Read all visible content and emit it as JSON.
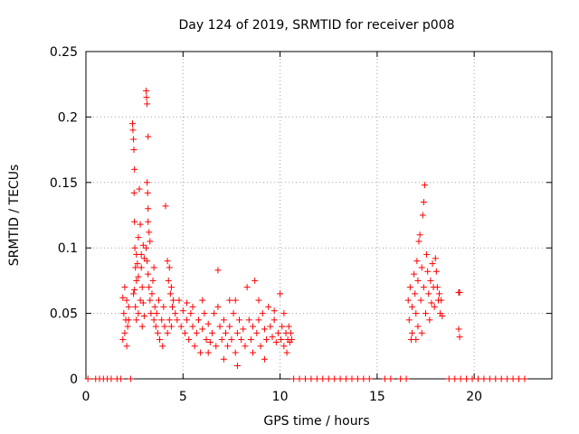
{
  "chart_data": {
    "type": "scatter",
    "title": "Day 124 of 2019, SRMTID for receiver p008",
    "xlabel": "GPS time / hours",
    "ylabel": "SRMTID / TECUs",
    "xlim": [
      0,
      24
    ],
    "ylim": [
      0,
      0.25
    ],
    "xticks": [
      0,
      5,
      10,
      15,
      20
    ],
    "xtick_labels": [
      "0",
      "5",
      "10",
      "15",
      "20"
    ],
    "yticks": [
      0,
      0.05,
      0.1,
      0.15,
      0.2,
      0.25
    ],
    "ytick_labels": [
      "0",
      "0.05",
      "0.1",
      "0.15",
      "0.2",
      "0.25"
    ],
    "grid": true,
    "marker": "+",
    "color": "#ff0000",
    "series": [
      {
        "name": "SRMTID",
        "points": [
          [
            0.1,
            0
          ],
          [
            0.5,
            0
          ],
          [
            0.7,
            0
          ],
          [
            0.9,
            0
          ],
          [
            1.1,
            0
          ],
          [
            1.3,
            0
          ],
          [
            1.6,
            0
          ],
          [
            1.8,
            0
          ],
          [
            2.3,
            0
          ],
          [
            1.9,
            0.03
          ],
          [
            1.95,
            0.05
          ],
          [
            2.0,
            0.07
          ],
          [
            2.05,
            0.045
          ],
          [
            2.1,
            0.06
          ],
          [
            2.15,
            0.04
          ],
          [
            2.2,
            0.055
          ],
          [
            1.9,
            0.062
          ],
          [
            2.0,
            0.035
          ],
          [
            2.1,
            0.025
          ],
          [
            2.2,
            0.045
          ],
          [
            2.4,
            0.195
          ],
          [
            2.42,
            0.19
          ],
          [
            2.45,
            0.183
          ],
          [
            2.47,
            0.175
          ],
          [
            2.5,
            0.16
          ],
          [
            2.48,
            0.142
          ],
          [
            2.5,
            0.12
          ],
          [
            2.52,
            0.1
          ],
          [
            2.55,
            0.085
          ],
          [
            2.6,
            0.075
          ],
          [
            2.45,
            0.065
          ],
          [
            2.55,
            0.055
          ],
          [
            2.6,
            0.095
          ],
          [
            2.65,
            0.088
          ],
          [
            2.7,
            0.108
          ],
          [
            2.7,
            0.078
          ],
          [
            2.75,
            0.145
          ],
          [
            2.8,
            0.118
          ],
          [
            2.85,
            0.085
          ],
          [
            2.9,
            0.07
          ],
          [
            2.95,
            0.102
          ],
          [
            3.0,
            0.092
          ],
          [
            2.95,
            0.058
          ],
          [
            3.0,
            0.048
          ],
          [
            2.8,
            0.06
          ],
          [
            2.9,
            0.04
          ],
          [
            2.6,
            0.045
          ],
          [
            2.7,
            0.05
          ],
          [
            2.5,
            0.068
          ],
          [
            2.85,
            0.095
          ],
          [
            3.1,
            0.22
          ],
          [
            3.12,
            0.215
          ],
          [
            3.15,
            0.21
          ],
          [
            3.2,
            0.185
          ],
          [
            3.15,
            0.15
          ],
          [
            3.18,
            0.142
          ],
          [
            3.2,
            0.13
          ],
          [
            3.2,
            0.12
          ],
          [
            3.25,
            0.112
          ],
          [
            3.3,
            0.105
          ],
          [
            3.1,
            0.1
          ],
          [
            3.15,
            0.09
          ],
          [
            3.2,
            0.08
          ],
          [
            3.25,
            0.07
          ],
          [
            3.3,
            0.06
          ],
          [
            3.35,
            0.05
          ],
          [
            3.4,
            0.065
          ],
          [
            3.45,
            0.075
          ],
          [
            3.5,
            0.085
          ],
          [
            3.55,
            0.055
          ],
          [
            3.5,
            0.045
          ],
          [
            3.6,
            0.04
          ],
          [
            3.65,
            0.05
          ],
          [
            3.7,
            0.035
          ],
          [
            3.75,
            0.06
          ],
          [
            3.8,
            0.03
          ],
          [
            3.9,
            0.045
          ],
          [
            3.95,
            0.025
          ],
          [
            4.0,
            0.055
          ],
          [
            4.05,
            0.04
          ],
          [
            4.1,
            0.132
          ],
          [
            4.2,
            0.09
          ],
          [
            4.25,
            0.075
          ],
          [
            4.3,
            0.085
          ],
          [
            4.35,
            0.065
          ],
          [
            4.4,
            0.07
          ],
          [
            4.45,
            0.055
          ],
          [
            4.5,
            0.06
          ],
          [
            4.3,
            0.045
          ],
          [
            4.6,
            0.05
          ],
          [
            4.2,
            0.035
          ],
          [
            4.4,
            0.04
          ],
          [
            4.7,
            0.045
          ],
          [
            4.8,
            0.06
          ],
          [
            4.9,
            0.04
          ],
          [
            5.0,
            0.052
          ],
          [
            5.1,
            0.035
          ],
          [
            5.2,
            0.045
          ],
          [
            5.3,
            0.03
          ],
          [
            5.4,
            0.05
          ],
          [
            5.5,
            0.04
          ],
          [
            5.6,
            0.025
          ],
          [
            5.7,
            0.035
          ],
          [
            5.8,
            0.045
          ],
          [
            5.9,
            0.02
          ],
          [
            6.0,
            0.038
          ],
          [
            6.1,
            0.05
          ],
          [
            6.2,
            0.03
          ],
          [
            6.3,
            0.042
          ],
          [
            6.4,
            0.028
          ],
          [
            6.5,
            0.035
          ],
          [
            6.6,
            0.05
          ],
          [
            6.7,
            0.025
          ],
          [
            6.8,
            0.083
          ],
          [
            6.9,
            0.04
          ],
          [
            7.0,
            0.03
          ],
          [
            7.1,
            0.045
          ],
          [
            7.2,
            0.035
          ],
          [
            7.3,
            0.025
          ],
          [
            7.4,
            0.04
          ],
          [
            7.5,
            0.03
          ],
          [
            7.6,
            0.05
          ],
          [
            7.7,
            0.02
          ],
          [
            7.8,
            0.035
          ],
          [
            7.9,
            0.045
          ],
          [
            8.0,
            0.03
          ],
          [
            8.1,
            0.038
          ],
          [
            8.2,
            0.025
          ],
          [
            8.3,
            0.07
          ],
          [
            8.4,
            0.045
          ],
          [
            8.5,
            0.03
          ],
          [
            8.6,
            0.04
          ],
          [
            8.7,
            0.075
          ],
          [
            8.8,
            0.035
          ],
          [
            8.9,
            0.045
          ],
          [
            9.0,
            0.025
          ],
          [
            9.1,
            0.05
          ],
          [
            9.2,
            0.038
          ],
          [
            9.3,
            0.03
          ],
          [
            9.4,
            0.055
          ],
          [
            9.5,
            0.04
          ],
          [
            9.6,
            0.032
          ],
          [
            9.7,
            0.045
          ],
          [
            9.8,
            0.028
          ],
          [
            9.9,
            0.035
          ],
          [
            10.0,
            0.065
          ],
          [
            10.05,
            0.03
          ],
          [
            10.1,
            0.04
          ],
          [
            10.2,
            0.025
          ],
          [
            10.3,
            0.035
          ],
          [
            10.35,
            0.02
          ],
          [
            10.4,
            0.03
          ],
          [
            10.45,
            0.04
          ],
          [
            10.5,
            0.028
          ],
          [
            10.55,
            0.035
          ],
          [
            10.6,
            0.03
          ],
          [
            5.5,
            0.055
          ],
          [
            6.3,
            0.02
          ],
          [
            7.1,
            0.015
          ],
          [
            7.8,
            0.01
          ],
          [
            8.6,
            0.02
          ],
          [
            9.2,
            0.015
          ],
          [
            6.0,
            0.06
          ],
          [
            7.4,
            0.06
          ],
          [
            8.9,
            0.06
          ],
          [
            9.7,
            0.052
          ],
          [
            5.2,
            0.058
          ],
          [
            6.8,
            0.055
          ],
          [
            7.7,
            0.06
          ],
          [
            10.2,
            0.05
          ],
          [
            10.7,
            0
          ],
          [
            11.0,
            0
          ],
          [
            11.3,
            0
          ],
          [
            11.6,
            0
          ],
          [
            11.9,
            0
          ],
          [
            12.2,
            0
          ],
          [
            12.5,
            0
          ],
          [
            12.8,
            0
          ],
          [
            13.1,
            0
          ],
          [
            13.4,
            0
          ],
          [
            13.7,
            0
          ],
          [
            14.0,
            0
          ],
          [
            14.3,
            0
          ],
          [
            14.6,
            0
          ],
          [
            15.4,
            0
          ],
          [
            15.7,
            0
          ],
          [
            16.2,
            0
          ],
          [
            16.5,
            0
          ],
          [
            16.6,
            0.06
          ],
          [
            16.65,
            0.045
          ],
          [
            16.7,
            0.07
          ],
          [
            16.75,
            0.03
          ],
          [
            16.8,
            0.055
          ],
          [
            16.9,
            0.08
          ],
          [
            16.95,
            0.065
          ],
          [
            17.0,
            0.05
          ],
          [
            17.05,
            0.09
          ],
          [
            17.1,
            0.075
          ],
          [
            17.15,
            0.105
          ],
          [
            17.2,
            0.11
          ],
          [
            17.1,
            0.04
          ],
          [
            17.25,
            0.06
          ],
          [
            17.3,
            0.085
          ],
          [
            17.35,
            0.125
          ],
          [
            17.4,
            0.135
          ],
          [
            17.45,
            0.148
          ],
          [
            17.4,
            0.07
          ],
          [
            17.5,
            0.05
          ],
          [
            17.55,
            0.095
          ],
          [
            17.6,
            0.082
          ],
          [
            17.65,
            0.065
          ],
          [
            17.7,
            0.045
          ],
          [
            17.75,
            0.075
          ],
          [
            17.8,
            0.058
          ],
          [
            17.85,
            0.088
          ],
          [
            17.9,
            0.07
          ],
          [
            17.95,
            0.055
          ],
          [
            18.0,
            0.092
          ],
          [
            18.05,
            0.082
          ],
          [
            18.1,
            0.07
          ],
          [
            18.15,
            0.06
          ],
          [
            18.2,
            0.065
          ],
          [
            18.25,
            0.05
          ],
          [
            18.3,
            0.06
          ],
          [
            18.35,
            0.048
          ],
          [
            17.3,
            0.035
          ],
          [
            17.0,
            0.03
          ],
          [
            16.8,
            0.035
          ],
          [
            19.2,
            0.066
          ],
          [
            19.25,
            0.066
          ],
          [
            19.2,
            0.038
          ],
          [
            19.25,
            0.032
          ],
          [
            18.7,
            0
          ],
          [
            19.0,
            0
          ],
          [
            19.3,
            0
          ],
          [
            19.6,
            0
          ],
          [
            19.9,
            0
          ],
          [
            20.2,
            0
          ],
          [
            20.5,
            0
          ],
          [
            20.8,
            0
          ],
          [
            21.1,
            0
          ],
          [
            21.4,
            0
          ],
          [
            21.7,
            0
          ],
          [
            22.0,
            0
          ],
          [
            22.3,
            0
          ],
          [
            22.6,
            0
          ]
        ]
      }
    ]
  }
}
